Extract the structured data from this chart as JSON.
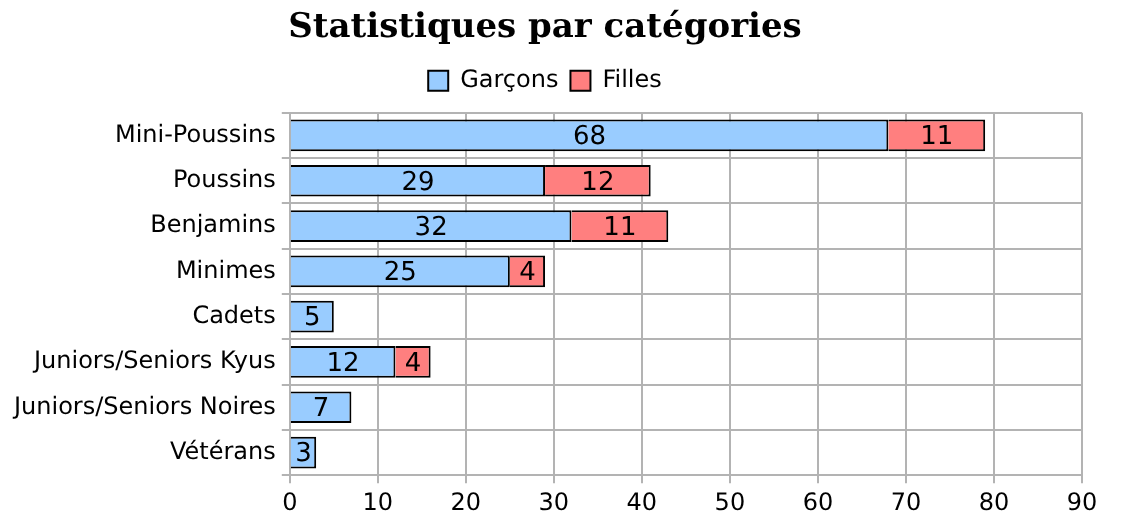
{
  "chart_data": {
    "type": "bar",
    "title": "Statistiques par catégories",
    "orientation": "horizontal",
    "stacked": true,
    "categories": [
      "Mini-Poussins",
      "Poussins",
      "Benjamins",
      "Minimes",
      "Cadets",
      "Juniors/Seniors Kyus",
      "Juniors/Seniors Noires",
      "Vétérans"
    ],
    "series": [
      {
        "name": "Garçons",
        "color": "#99ccff",
        "values": [
          68,
          29,
          32,
          25,
          5,
          12,
          7,
          3
        ]
      },
      {
        "name": "Filles",
        "color": "#ff7f7f",
        "values": [
          11,
          12,
          11,
          4,
          null,
          4,
          null,
          null
        ]
      }
    ],
    "xlim": [
      0,
      90
    ],
    "xticks": [
      0,
      10,
      20,
      30,
      40,
      50,
      60,
      70,
      80,
      90
    ],
    "grid": true,
    "legend": "top",
    "data_labels": true
  }
}
